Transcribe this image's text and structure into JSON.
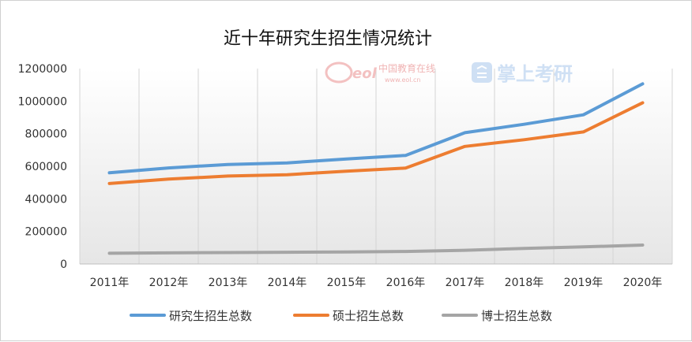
{
  "chart_data": {
    "type": "line",
    "title": "近十年研究生招生情况统计",
    "xlabel": "",
    "ylabel": "",
    "categories": [
      "2011年",
      "2012年",
      "2013年",
      "2014年",
      "2015年",
      "2016年",
      "2017年",
      "2018年",
      "2019年",
      "2020年"
    ],
    "ylim": [
      0,
      1200000
    ],
    "yticks": [
      "0",
      "200000",
      "400000",
      "600000",
      "800000",
      "1000000",
      "1200000"
    ],
    "grid": "vertical",
    "legend": "bottom",
    "series": [
      {
        "name": "研究生招生总数",
        "color": "#5b9bd5",
        "values": [
          560000,
          590000,
          611000,
          621000,
          645000,
          667000,
          806000,
          858000,
          916000,
          1106000
        ]
      },
      {
        "name": "硕士招生总数",
        "color": "#ed7d31",
        "values": [
          494000,
          521000,
          540000,
          548000,
          570000,
          589000,
          722000,
          763000,
          811000,
          990000
        ]
      },
      {
        "name": "博士招生总数",
        "color": "#a5a5a5",
        "values": [
          66000,
          68000,
          70000,
          72000,
          74000,
          77000,
          84000,
          96000,
          105000,
          116000
        ]
      }
    ]
  },
  "watermarks": {
    "eol_logo": "eol",
    "eol_name": "中国教育在线",
    "eol_url": "www.eol.cn",
    "kaoyan_name": "掌上考研"
  }
}
